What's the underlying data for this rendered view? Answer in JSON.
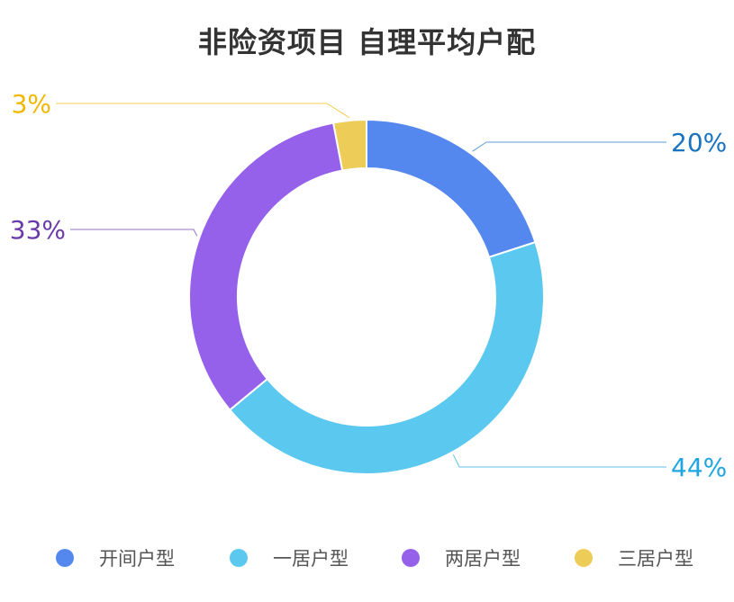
{
  "chart_data": {
    "type": "pie",
    "title": "非险资项目 自理平均户配",
    "categories": [
      "开间户型",
      "一居户型",
      "两居户型",
      "三居户型"
    ],
    "values": [
      20,
      44,
      33,
      3
    ],
    "value_labels": [
      "20%",
      "44%",
      "33%",
      "3%"
    ],
    "colors": [
      "#5588ee",
      "#5bc8ef",
      "#9560ea",
      "#edcc57"
    ],
    "label_colors": [
      "#1a73c0",
      "#1fa6df",
      "#6a3aa8",
      "#f0b800"
    ],
    "donut": true,
    "legend_position": "bottom"
  },
  "legend": {
    "items": [
      {
        "label": "开间户型",
        "color": "#5588ee"
      },
      {
        "label": "一居户型",
        "color": "#5bc8ef"
      },
      {
        "label": "两居户型",
        "color": "#9560ea"
      },
      {
        "label": "三居户型",
        "color": "#edcc57"
      }
    ]
  }
}
